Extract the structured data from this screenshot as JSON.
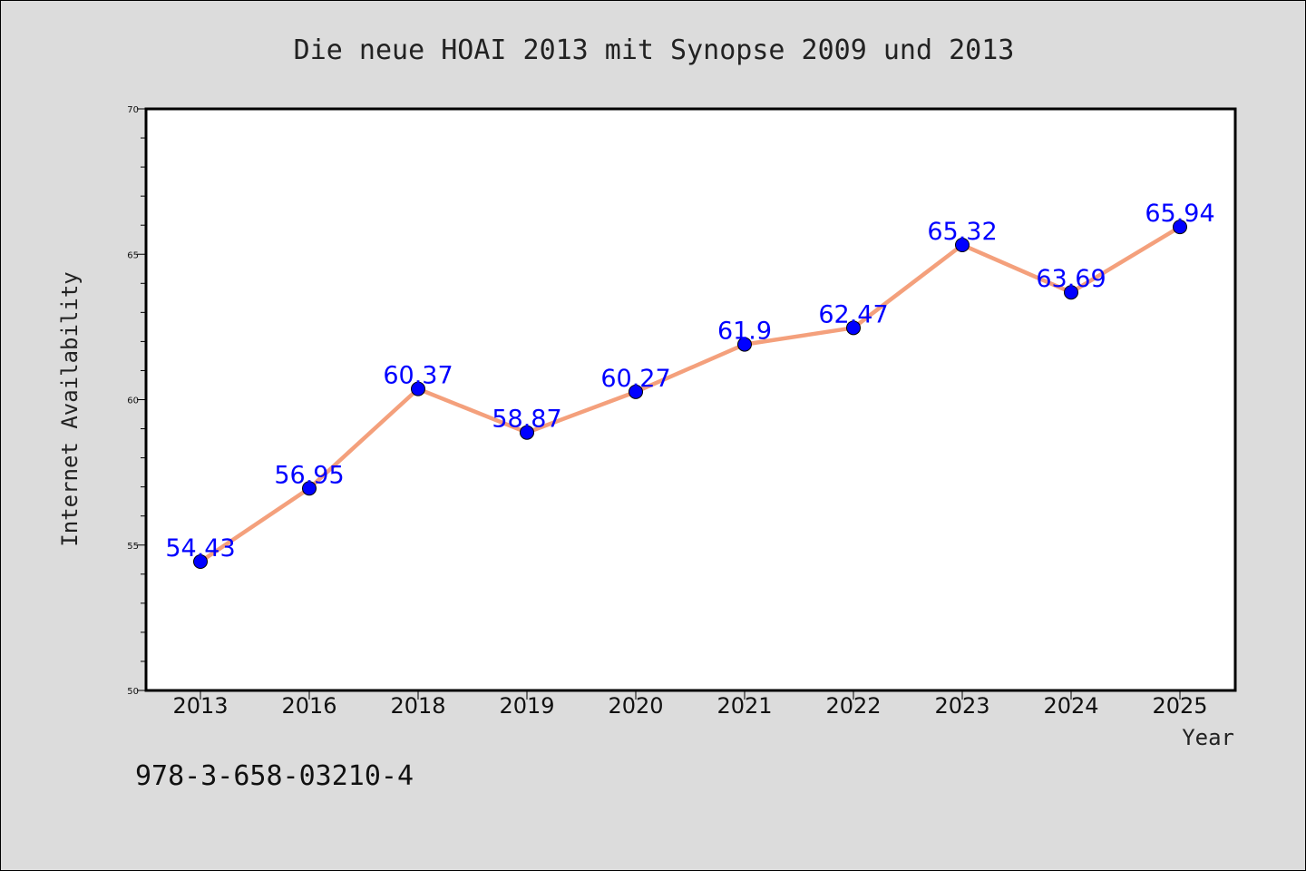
{
  "chart_data": {
    "type": "line",
    "title": "Die neue HOAI 2013 mit Synopse 2009 und 2013",
    "xlabel": "Year",
    "ylabel": "Internet Availability",
    "categories": [
      "2013",
      "2016",
      "2018",
      "2019",
      "2020",
      "2021",
      "2022",
      "2023",
      "2024",
      "2025"
    ],
    "series": [
      {
        "values": [
          54.43,
          56.95,
          60.37,
          58.87,
          60.27,
          61.9,
          62.47,
          65.32,
          63.69,
          65.94
        ],
        "data_labels": [
          "54.43",
          "56.95",
          "60.37",
          "58.87",
          "60.27",
          "61.9",
          "62.47",
          "65.32",
          "63.69",
          "65.94"
        ],
        "line_color": "#f4a07c",
        "marker_color": "#0000ff"
      }
    ],
    "ylim": [
      50,
      70
    ],
    "yticks": [
      50,
      55,
      60,
      65,
      70
    ],
    "ytick_labels": [
      "50",
      "55",
      "60",
      "65",
      "70"
    ],
    "grid": false,
    "legend": "none"
  },
  "footer": {
    "isbn": "978-3-658-03210-4"
  }
}
